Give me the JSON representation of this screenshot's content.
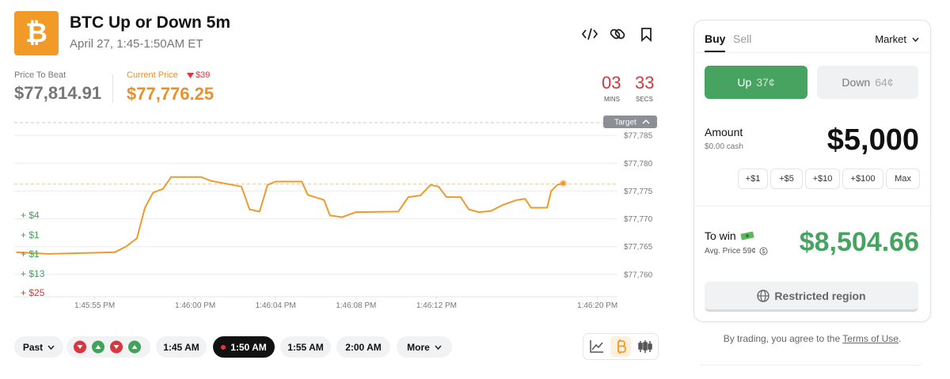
{
  "header": {
    "icon": "₿",
    "title": "BTC Up or Down 5m",
    "subtitle": "April 27, 1:45-1:50AM ET"
  },
  "prices": {
    "beat_label": "Price To Beat",
    "beat_value": "$77,814.91",
    "current_label": "Current Price",
    "change": "$39",
    "current_value": "$77,776.25"
  },
  "timer": {
    "minutes": "03",
    "minutes_label": "MINS",
    "seconds": "33",
    "seconds_label": "SECS"
  },
  "chart_data": {
    "type": "line",
    "color": "#ee9a2c",
    "grid": true,
    "target_label": "Target",
    "reference_line": 77776.25,
    "x": [
      1.1,
      2.7,
      6.0,
      6.6,
      7.1,
      7.5,
      7.9,
      8.4,
      8.8,
      10.3,
      10.8,
      12.3,
      12.7,
      13.2,
      13.6,
      14.0,
      15.3,
      15.6,
      16.4,
      16.7,
      17.3,
      18.0,
      20.1,
      20.6,
      21.2,
      21.7,
      22.1,
      22.5,
      23.2,
      23.6,
      24.1,
      24.7,
      25.3,
      26.0,
      26.4,
      26.7,
      27.5,
      27.7,
      28.0,
      28.3
    ],
    "values": [
      77764.0,
      77763.7,
      77764.0,
      77765.1,
      77766.5,
      77772.0,
      77774.7,
      77775.4,
      77777.5,
      77777.5,
      77776.8,
      77775.8,
      77771.7,
      77771.3,
      77776.1,
      77776.7,
      77776.7,
      77774.3,
      77773.4,
      77770.6,
      77770.3,
      77771.2,
      77771.3,
      77773.9,
      77774.2,
      77776.1,
      77775.8,
      77773.9,
      77773.9,
      77771.7,
      77771.2,
      77771.4,
      77772.5,
      77773.4,
      77773.6,
      77772.0,
      77772.0,
      77775.0,
      77776.1,
      77776.4
    ],
    "xlim": [
      1,
      31
    ],
    "ylim": [
      77756,
      77788
    ],
    "xticks": [
      {
        "value": 5,
        "label": "1:45:55 PM"
      },
      {
        "value": 10,
        "label": "1:46:00 PM"
      },
      {
        "value": 14,
        "label": "1:46:04 PM"
      },
      {
        "value": 18,
        "label": "1:46:08 PM"
      },
      {
        "value": 22,
        "label": "1:46:12 PM"
      },
      {
        "value": 30,
        "label": "1:46:20 PM"
      }
    ],
    "yticks": [
      {
        "value": 77760,
        "label": "$77,760"
      },
      {
        "value": 77765,
        "label": "$77,765"
      },
      {
        "value": 77770,
        "label": "$77,770"
      },
      {
        "value": 77775,
        "label": "$77,775"
      },
      {
        "value": 77780,
        "label": "$77,780"
      },
      {
        "value": 77785,
        "label": "$77,785"
      }
    ]
  },
  "trades": {
    "labels": [
      "+ $4",
      "+ $1",
      "+ $1",
      "+ $13",
      "+ $25"
    ],
    "colors": [
      "#3fa35a",
      "#3fa35a",
      "#3fa35a",
      "#3fa35a",
      "#d9363e"
    ]
  },
  "controls": {
    "past": "Past",
    "times": [
      "1:45 AM",
      "1:50 AM",
      "1:55 AM",
      "2:00 AM"
    ],
    "more": "More"
  },
  "order": {
    "tabs": [
      "Buy",
      "Sell"
    ],
    "order_type": "Market",
    "up_label": "Up",
    "up_price": "37¢",
    "down_label": "Down",
    "down_price": "64¢",
    "amount_label": "Amount",
    "cash": "$0.00 cash",
    "amount": "$5,000",
    "increments": [
      "+$1",
      "+$5",
      "+$10",
      "+$100",
      "Max"
    ],
    "to_win_label": "To win",
    "avg_price": "Avg. Price 59¢",
    "to_win": "$8,504.66",
    "restricted": "Restricted region"
  },
  "footer": {
    "text": "By trading, you agree to the",
    "link": "Terms of Use",
    "end": "."
  }
}
